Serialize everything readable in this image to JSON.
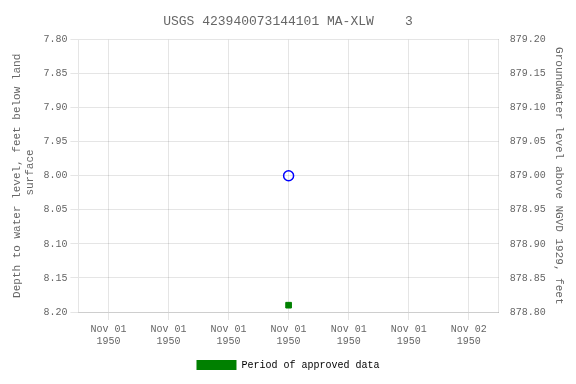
{
  "chart_data": {
    "type": "scatter",
    "title": "USGS 423940073144101 MA-XLW    3",
    "y_label": "Depth to water level, feet below land\n surface",
    "y2_label": "Groundwater level above NGVD 1929, feet",
    "categories": [
      "Nov 01\n1950",
      "Nov 01\n1950",
      "Nov 01\n1950",
      "Nov 01\n1950",
      "Nov 01\n1950",
      "Nov 01\n1950",
      "Nov 02\n1950"
    ],
    "series": [
      {
        "color": "blue",
        "marker": "open_circle",
        "line_style": "none",
        "values": [
          null,
          null,
          null,
          8.0,
          null,
          null,
          null
        ]
      },
      {
        "name": "Period of approved data",
        "color": "#008000",
        "marker": "square",
        "line_style": "none",
        "values": [
          null,
          null,
          null,
          8.19,
          null,
          null,
          null
        ]
      }
    ],
    "ylim": [
      8.2,
      7.8
    ],
    "yticks": [
      {
        "value": 7.8,
        "label": "7.80"
      },
      {
        "value": 7.85,
        "label": "7.85"
      },
      {
        "value": 7.9,
        "label": "7.90"
      },
      {
        "value": 7.95,
        "label": "7.95"
      },
      {
        "value": 8.0,
        "label": "8.00"
      },
      {
        "value": 8.05,
        "label": "8.05"
      },
      {
        "value": 8.1,
        "label": "8.10"
      },
      {
        "value": 8.15,
        "label": "8.15"
      },
      {
        "value": 8.2,
        "label": "8.20"
      }
    ],
    "y2lim": [
      878.8,
      879.2
    ],
    "y2ticks": [
      {
        "value": 879.2,
        "label": "879.20"
      },
      {
        "value": 879.15,
        "label": "879.15"
      },
      {
        "value": 879.1,
        "label": "879.10"
      },
      {
        "value": 879.05,
        "label": "879.05"
      },
      {
        "value": 879.0,
        "label": "879.00"
      },
      {
        "value": 878.95,
        "label": "878.95"
      },
      {
        "value": 878.9,
        "label": "878.90"
      },
      {
        "value": 878.85,
        "label": "878.85"
      },
      {
        "value": 878.8,
        "label": "878.80"
      }
    ],
    "grid": true,
    "legend": "bottom"
  }
}
